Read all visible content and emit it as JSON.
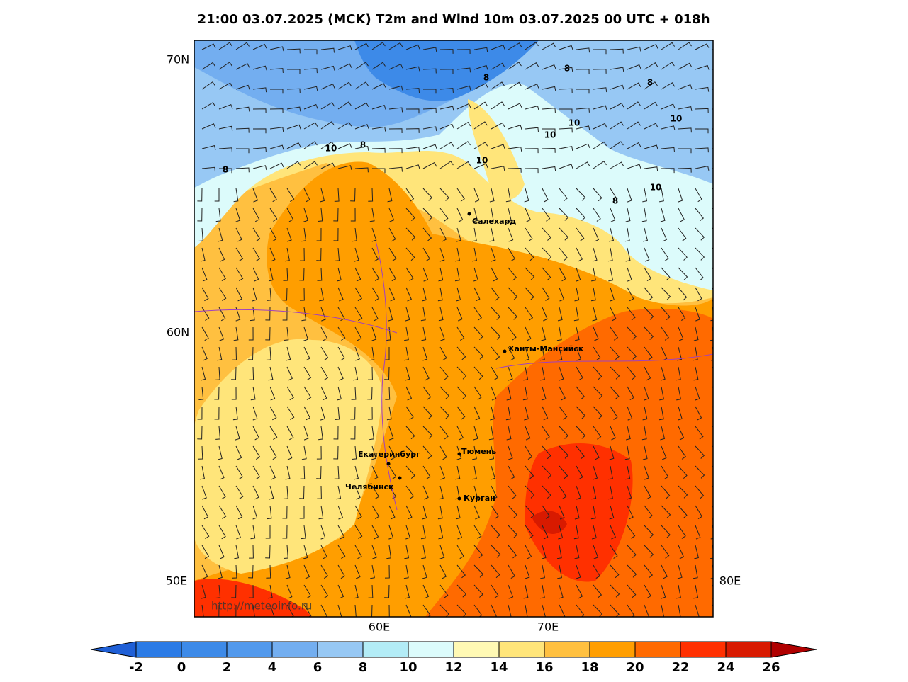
{
  "title": "21:00 03.07.2025 (MCK) T2m and Wind 10m 03.07.2025 00 UTC + 018h",
  "map": {
    "lat_labels": [
      "70N",
      "60N"
    ],
    "lon_labels": [
      "50E",
      "60E",
      "70E",
      "80E"
    ],
    "cities": [
      "Салехард",
      "Ханты-Мансийск",
      "Екатеринбург",
      "Тюмень",
      "Челябинск",
      "Курган"
    ],
    "contour_labels": [
      "8",
      "8",
      "8",
      "10",
      "10",
      "10",
      "10",
      "8",
      "8",
      "10",
      "10",
      "8"
    ],
    "watermark": "http://meteoinfo.ru"
  },
  "colorbar": {
    "labels": [
      -2,
      0,
      2,
      4,
      6,
      8,
      10,
      12,
      14,
      16,
      18,
      20,
      22,
      24,
      26
    ],
    "colors": [
      "#1f5fd6",
      "#2b7be6",
      "#3d8ae8",
      "#5299ec",
      "#73aef0",
      "#97c8f4",
      "#b3ecf6",
      "#dcfbfb",
      "#fff9b4",
      "#ffe57a",
      "#ffc040",
      "#ff9e00",
      "#ff6a00",
      "#ff3000",
      "#d81a00",
      "#b00000"
    ]
  }
}
